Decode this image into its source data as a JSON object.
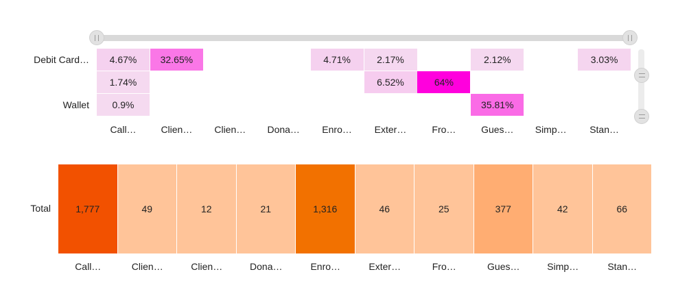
{
  "chart_data": [
    {
      "type": "heatmap",
      "title": "",
      "rows": [
        "Debit Card…",
        "",
        "Wallet"
      ],
      "columns": [
        "Call…",
        "Clien…",
        "Clien…",
        "Dona…",
        "Enro…",
        "Exter…",
        "Fro…",
        "Gues…",
        "Simp…",
        "Stan…"
      ],
      "cells": [
        [
          4.67,
          32.65,
          null,
          null,
          4.71,
          2.17,
          null,
          2.12,
          null,
          3.03
        ],
        [
          1.74,
          null,
          null,
          null,
          null,
          6.52,
          64,
          null,
          null,
          null
        ],
        [
          0.9,
          null,
          null,
          null,
          null,
          null,
          null,
          35.81,
          null,
          null
        ]
      ],
      "labels": [
        [
          "4.67%",
          "32.65%",
          "",
          "",
          "4.71%",
          "2.17%",
          "",
          "2.12%",
          "",
          "3.03%"
        ],
        [
          "1.74%",
          "",
          "",
          "",
          "",
          "6.52%",
          "64%",
          "",
          "",
          ""
        ],
        [
          "0.9%",
          "",
          "",
          "",
          "",
          "",
          "",
          "35.81%",
          "",
          ""
        ]
      ],
      "color_low": "#f5dcf0",
      "color_high": "#ff00dd",
      "scrollbars": {
        "horizontal": true,
        "vertical": true
      }
    },
    {
      "type": "heatmap",
      "title": "",
      "rows": [
        "Total"
      ],
      "columns": [
        "Call…",
        "Clien…",
        "Clien…",
        "Dona…",
        "Enro…",
        "Exter…",
        "Fro…",
        "Gues…",
        "Simp…",
        "Stan…"
      ],
      "values": [
        1777,
        49,
        12,
        21,
        1316,
        46,
        25,
        377,
        42,
        66
      ],
      "labels": [
        "1,777",
        "49",
        "12",
        "21",
        "1,316",
        "46",
        "25",
        "377",
        "42",
        "66"
      ],
      "colors": [
        "#f25100",
        "#ffc499",
        "#ffc499",
        "#ffc499",
        "#f27100",
        "#ffc499",
        "#ffc499",
        "#ffad72",
        "#ffc499",
        "#ffc499"
      ]
    }
  ]
}
